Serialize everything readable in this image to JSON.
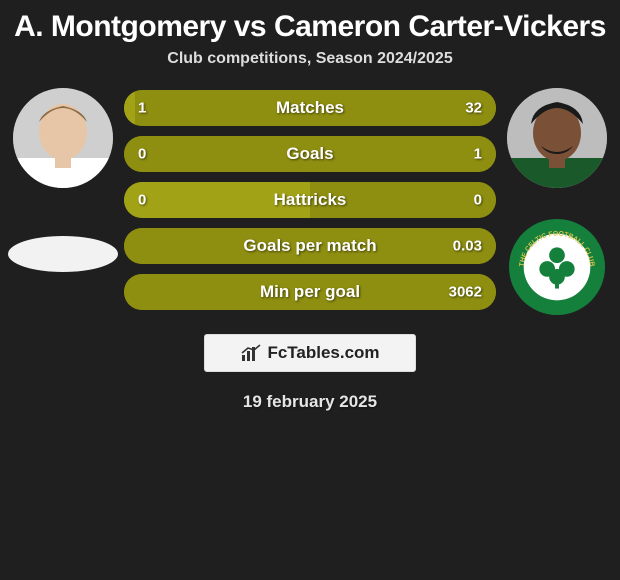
{
  "title": "A. Montgomery vs Cameron Carter-Vickers",
  "title_fontsize": 30,
  "subtitle": "Club competitions, Season 2024/2025",
  "subtitle_fontsize": 16,
  "date": "19 february 2025",
  "date_fontsize": 17,
  "background_color": "#1f1f1f",
  "footer_logo_text": "FcTables.com",
  "footer_logo_fontsize": 17,
  "bar": {
    "height": 36,
    "radius": 18,
    "label_fontsize": 17,
    "value_fontsize": 15,
    "left_color": "#a2a217",
    "right_color": "#8e8e11",
    "text_color": "#ffffff"
  },
  "avatars": {
    "left_skin": "#e7c6a8",
    "left_hair": "#8a6a42",
    "left_shirt": "#ffffff",
    "right_skin": "#7a5136",
    "right_hair": "#1a1a1a",
    "right_shirt": "#1a5a2a"
  },
  "club_badge_right": {
    "outer": "#14803c",
    "inner_bg": "#ffffff",
    "clover": "#14803c",
    "text_color": "#d8c24a"
  },
  "rows": [
    {
      "label": "Matches",
      "left_val": "1",
      "right_val": "32",
      "left_pct": 3,
      "right_pct": 97
    },
    {
      "label": "Goals",
      "left_val": "0",
      "right_val": "1",
      "left_pct": 0,
      "right_pct": 100
    },
    {
      "label": "Hattricks",
      "left_val": "0",
      "right_val": "0",
      "left_pct": 50,
      "right_pct": 50
    },
    {
      "label": "Goals per match",
      "left_val": "",
      "right_val": "0.03",
      "left_pct": 0,
      "right_pct": 100
    },
    {
      "label": "Min per goal",
      "left_val": "",
      "right_val": "3062",
      "left_pct": 0,
      "right_pct": 100
    }
  ]
}
